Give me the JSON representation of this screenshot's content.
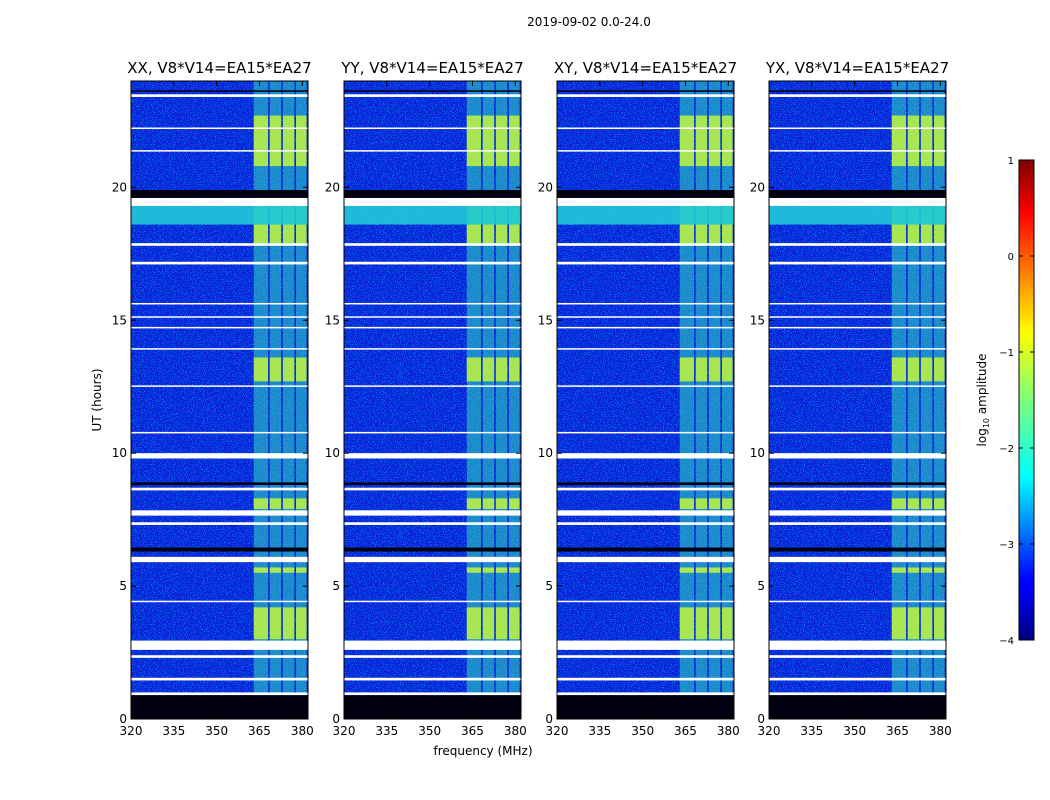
{
  "chart_data": {
    "type": "heatmap",
    "title": "2019-09-02 0.0-24.0",
    "xlabel": "frequency (MHz)",
    "ylabel": "UT (hours)",
    "xlim": [
      320,
      382
    ],
    "ylim": [
      0,
      24
    ],
    "x_ticks": [
      320,
      335,
      350,
      365,
      380
    ],
    "x_tick_labels": [
      "320",
      "335",
      "350",
      "365",
      "380"
    ],
    "y_ticks": [
      0,
      5,
      10,
      15,
      20
    ],
    "y_tick_labels": [
      "0",
      "5",
      "10",
      "15",
      "20"
    ],
    "panels": [
      {
        "title": "XX, V8*V14=EA15*EA27"
      },
      {
        "title": "YY, V8*V14=EA15*EA27"
      },
      {
        "title": "XY, V8*V14=EA15*EA27"
      },
      {
        "title": "YX, V8*V14=EA15*EA27"
      }
    ],
    "colorbar": {
      "label_prefix": "log",
      "label_sub": "10",
      "label_suffix": " amplitude",
      "range": [
        -4,
        1
      ],
      "ticks": [
        1,
        0,
        -1,
        -2,
        -3,
        -4
      ],
      "tick_labels": [
        "1",
        "0",
        "−1",
        "−2",
        "−3",
        "−4"
      ],
      "colormap": "jet"
    },
    "features": {
      "rfi_band_mhz": [
        363,
        382
      ],
      "rfi_subbands_mhz": [
        [
          363,
          368
        ],
        [
          368.6,
          372.6
        ],
        [
          373.2,
          377.2
        ],
        [
          377.8,
          381.5
        ]
      ],
      "flagged_hours_white": [
        [
          0.9,
          1.0
        ],
        [
          1.45,
          1.55
        ],
        [
          2.3,
          2.4
        ],
        [
          2.6,
          2.95
        ],
        [
          4.4,
          4.45
        ],
        [
          5.9,
          6.1
        ],
        [
          7.3,
          7.4
        ],
        [
          7.65,
          7.85
        ],
        [
          8.6,
          8.7
        ],
        [
          9.8,
          10.0
        ],
        [
          10.75,
          10.8
        ],
        [
          12.5,
          12.55
        ],
        [
          13.9,
          13.95
        ],
        [
          14.7,
          14.75
        ],
        [
          15.1,
          15.15
        ],
        [
          15.6,
          15.65
        ],
        [
          17.1,
          17.2
        ],
        [
          17.8,
          17.9
        ],
        [
          19.3,
          19.6
        ],
        [
          21.35,
          21.4
        ],
        [
          22.2,
          22.25
        ],
        [
          23.4,
          23.5
        ]
      ],
      "flagged_hours_black": [
        [
          0,
          0.9
        ],
        [
          6.3,
          6.45
        ],
        [
          8.8,
          8.9
        ],
        [
          19.6,
          19.9
        ],
        [
          23.6,
          23.65
        ]
      ],
      "bright_rfi_hours": [
        [
          3.0,
          4.2
        ],
        [
          5.5,
          5.7
        ],
        [
          7.9,
          8.3
        ],
        [
          12.7,
          13.6
        ],
        [
          17.9,
          18.6
        ],
        [
          20.8,
          22.7
        ]
      ],
      "elevated_hours": [
        [
          18.6,
          19.3
        ]
      ]
    }
  }
}
